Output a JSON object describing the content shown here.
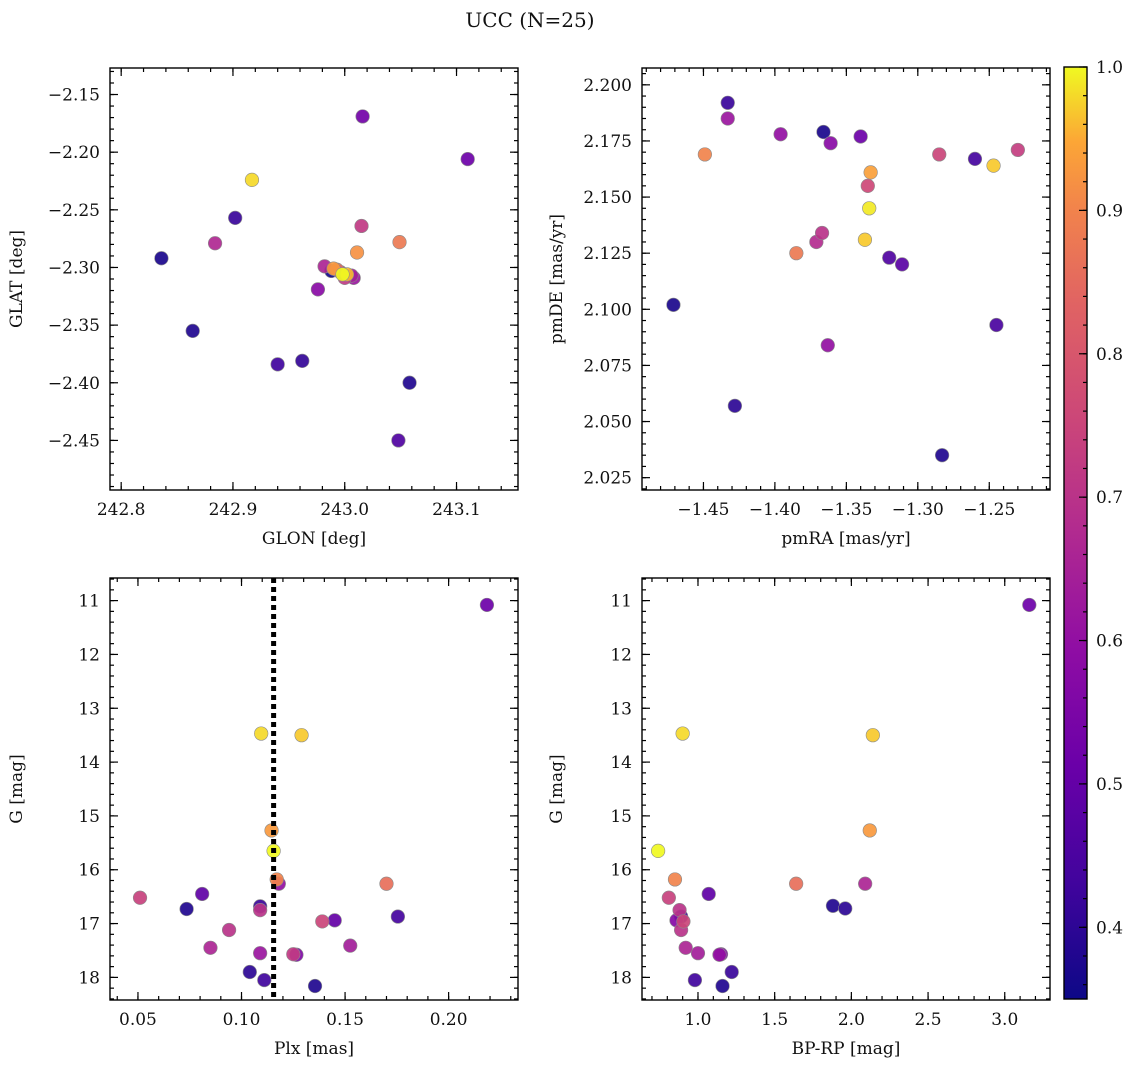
{
  "title": "UCC (N=25)",
  "colorbar": {
    "min": 0.35,
    "max": 1.0,
    "ticks": [
      0.4,
      0.5,
      0.6,
      0.7,
      0.8,
      0.9,
      1.0
    ],
    "tick_labels": [
      "0.4",
      "0.5",
      "0.6",
      "0.7",
      "0.8",
      "0.9",
      "1.0"
    ],
    "colormap": "plasma"
  },
  "chart_data": [
    {
      "type": "scatter",
      "xlabel": "GLON [deg]",
      "ylabel": "GLAT [deg]",
      "xlim": [
        242.79,
        243.155
      ],
      "ylim": [
        -2.493,
        -2.127
      ],
      "xticks": [
        242.8,
        242.9,
        243.0,
        243.1
      ],
      "xtick_labels": [
        "242.8",
        "242.9",
        "243.0",
        "243.1"
      ],
      "yticks": [
        -2.15,
        -2.2,
        -2.25,
        -2.3,
        -2.35,
        -2.4,
        -2.45
      ],
      "ytick_labels": [
        "−2.15",
        "−2.20",
        "−2.25",
        "−2.30",
        "−2.35",
        "−2.40",
        "−2.45"
      ],
      "points": [
        {
          "x": 242.836,
          "y": -2.292,
          "c": 0.37
        },
        {
          "x": 242.864,
          "y": -2.355,
          "c": 0.38
        },
        {
          "x": 242.884,
          "y": -2.279,
          "c": 0.67
        },
        {
          "x": 242.902,
          "y": -2.257,
          "c": 0.42
        },
        {
          "x": 242.917,
          "y": -2.224,
          "c": 0.98
        },
        {
          "x": 242.94,
          "y": -2.384,
          "c": 0.43
        },
        {
          "x": 242.962,
          "y": -2.381,
          "c": 0.41
        },
        {
          "x": 242.976,
          "y": -2.319,
          "c": 0.58
        },
        {
          "x": 242.982,
          "y": -2.299,
          "c": 0.66
        },
        {
          "x": 242.988,
          "y": -2.303,
          "c": 0.36
        },
        {
          "x": 242.99,
          "y": -2.301,
          "c": 0.93
        },
        {
          "x": 242.993,
          "y": -2.302,
          "c": 0.85
        },
        {
          "x": 242.996,
          "y": -2.304,
          "c": 0.69
        },
        {
          "x": 242.998,
          "y": -2.306,
          "c": 1.0
        },
        {
          "x": 243.0,
          "y": -2.309,
          "c": 0.72
        },
        {
          "x": 243.002,
          "y": -2.306,
          "c": 0.96
        },
        {
          "x": 243.006,
          "y": -2.307,
          "c": 0.64
        },
        {
          "x": 243.008,
          "y": -2.309,
          "c": 0.62
        },
        {
          "x": 243.011,
          "y": -2.287,
          "c": 0.92
        },
        {
          "x": 243.015,
          "y": -2.264,
          "c": 0.72
        },
        {
          "x": 243.016,
          "y": -2.169,
          "c": 0.53
        },
        {
          "x": 243.049,
          "y": -2.278,
          "c": 0.88
        },
        {
          "x": 243.048,
          "y": -2.45,
          "c": 0.46
        },
        {
          "x": 243.058,
          "y": -2.4,
          "c": 0.38
        },
        {
          "x": 243.11,
          "y": -2.206,
          "c": 0.52
        }
      ]
    },
    {
      "type": "scatter",
      "xlabel": "pmRA [mas/yr]",
      "ylabel": "pmDE [mas/yr]",
      "xlim": [
        -1.493,
        -1.2075
      ],
      "ylim": [
        2.0195,
        2.2075
      ],
      "xticks": [
        -1.45,
        -1.4,
        -1.35,
        -1.3,
        -1.25
      ],
      "xtick_labels": [
        "−1.45",
        "−1.40",
        "−1.35",
        "−1.30",
        "−1.25"
      ],
      "yticks": [
        2.2,
        2.175,
        2.15,
        2.125,
        2.1,
        2.075,
        2.05,
        2.025
      ],
      "ytick_labels": [
        "2.200",
        "2.175",
        "2.150",
        "2.125",
        "2.100",
        "2.075",
        "2.050",
        "2.025"
      ],
      "points": [
        {
          "x": -1.471,
          "y": 2.102,
          "c": 0.37
        },
        {
          "x": -1.449,
          "y": 2.169,
          "c": 0.9
        },
        {
          "x": -1.433,
          "y": 2.192,
          "c": 0.42
        },
        {
          "x": -1.433,
          "y": 2.185,
          "c": 0.62
        },
        {
          "x": -1.428,
          "y": 2.057,
          "c": 0.4
        },
        {
          "x": -1.396,
          "y": 2.178,
          "c": 0.6
        },
        {
          "x": -1.385,
          "y": 2.125,
          "c": 0.88
        },
        {
          "x": -1.371,
          "y": 2.13,
          "c": 0.68
        },
        {
          "x": -1.367,
          "y": 2.134,
          "c": 0.7
        },
        {
          "x": -1.366,
          "y": 2.179,
          "c": 0.37
        },
        {
          "x": -1.363,
          "y": 2.084,
          "c": 0.6
        },
        {
          "x": -1.361,
          "y": 2.174,
          "c": 0.58
        },
        {
          "x": -1.34,
          "y": 2.177,
          "c": 0.52
        },
        {
          "x": -1.337,
          "y": 2.131,
          "c": 0.97
        },
        {
          "x": -1.335,
          "y": 2.155,
          "c": 0.76
        },
        {
          "x": -1.334,
          "y": 2.145,
          "c": 0.99
        },
        {
          "x": -1.333,
          "y": 2.161,
          "c": 0.94
        },
        {
          "x": -1.32,
          "y": 2.123,
          "c": 0.46
        },
        {
          "x": -1.311,
          "y": 2.12,
          "c": 0.48
        },
        {
          "x": -1.285,
          "y": 2.169,
          "c": 0.75
        },
        {
          "x": -1.283,
          "y": 2.035,
          "c": 0.38
        },
        {
          "x": -1.26,
          "y": 2.167,
          "c": 0.44
        },
        {
          "x": -1.247,
          "y": 2.164,
          "c": 0.97
        },
        {
          "x": -1.245,
          "y": 2.093,
          "c": 0.45
        },
        {
          "x": -1.23,
          "y": 2.171,
          "c": 0.73
        }
      ]
    },
    {
      "type": "scatter",
      "xlabel": "Plx [mas]",
      "ylabel": "G [mag]",
      "xlim": [
        0.0365,
        0.2335
      ],
      "ylim": [
        18.42,
        10.58
      ],
      "xticks": [
        0.05,
        0.1,
        0.15,
        0.2
      ],
      "xtick_labels": [
        "0.05",
        "0.10",
        "0.15",
        "0.20"
      ],
      "yticks": [
        11,
        12,
        13,
        14,
        15,
        16,
        17,
        18
      ],
      "ytick_labels": [
        "11",
        "12",
        "13",
        "14",
        "15",
        "16",
        "17",
        "18"
      ],
      "vline": 0.1155,
      "points": [
        {
          "x": 0.051,
          "y": 16.52,
          "c": 0.74
        },
        {
          "x": 0.0735,
          "y": 16.73,
          "c": 0.38
        },
        {
          "x": 0.081,
          "y": 16.45,
          "c": 0.49
        },
        {
          "x": 0.085,
          "y": 17.45,
          "c": 0.66
        },
        {
          "x": 0.094,
          "y": 17.12,
          "c": 0.7
        },
        {
          "x": 0.104,
          "y": 17.9,
          "c": 0.4
        },
        {
          "x": 0.109,
          "y": 16.68,
          "c": 0.42
        },
        {
          "x": 0.109,
          "y": 16.75,
          "c": 0.7
        },
        {
          "x": 0.109,
          "y": 17.55,
          "c": 0.62
        },
        {
          "x": 0.1095,
          "y": 13.47,
          "c": 0.98
        },
        {
          "x": 0.111,
          "y": 18.05,
          "c": 0.43
        },
        {
          "x": 0.1145,
          "y": 15.27,
          "c": 0.93
        },
        {
          "x": 0.1155,
          "y": 15.65,
          "c": 1.0
        },
        {
          "x": 0.117,
          "y": 16.18,
          "c": 0.9
        },
        {
          "x": 0.118,
          "y": 16.26,
          "c": 0.6
        },
        {
          "x": 0.125,
          "y": 17.57,
          "c": 0.72
        },
        {
          "x": 0.1265,
          "y": 17.58,
          "c": 0.56
        },
        {
          "x": 0.129,
          "y": 13.5,
          "c": 0.97
        },
        {
          "x": 0.1355,
          "y": 18.16,
          "c": 0.38
        },
        {
          "x": 0.139,
          "y": 16.96,
          "c": 0.75
        },
        {
          "x": 0.145,
          "y": 16.94,
          "c": 0.5
        },
        {
          "x": 0.1525,
          "y": 17.41,
          "c": 0.64
        },
        {
          "x": 0.17,
          "y": 16.26,
          "c": 0.86
        },
        {
          "x": 0.1755,
          "y": 16.87,
          "c": 0.44
        },
        {
          "x": 0.2185,
          "y": 11.08,
          "c": 0.52
        }
      ]
    },
    {
      "type": "scatter",
      "xlabel": "BP-RP [mag]",
      "ylabel": "G [mag]",
      "xlim": [
        0.635,
        3.295
      ],
      "ylim": [
        18.42,
        10.58
      ],
      "xticks": [
        1.0,
        1.5,
        2.0,
        2.5,
        3.0
      ],
      "xtick_labels": [
        "1.0",
        "1.5",
        "2.0",
        "2.5",
        "3.0"
      ],
      "yticks": [
        11,
        12,
        13,
        14,
        15,
        16,
        17,
        18
      ],
      "ytick_labels": [
        "11",
        "12",
        "13",
        "14",
        "15",
        "16",
        "17",
        "18"
      ],
      "points": [
        {
          "x": 0.74,
          "y": 15.65,
          "c": 1.0
        },
        {
          "x": 0.81,
          "y": 16.52,
          "c": 0.74
        },
        {
          "x": 0.85,
          "y": 16.18,
          "c": 0.9
        },
        {
          "x": 0.86,
          "y": 16.94,
          "c": 0.57
        },
        {
          "x": 0.88,
          "y": 16.75,
          "c": 0.7
        },
        {
          "x": 0.89,
          "y": 16.87,
          "c": 0.44
        },
        {
          "x": 0.89,
          "y": 17.12,
          "c": 0.7
        },
        {
          "x": 0.9,
          "y": 13.47,
          "c": 0.98
        },
        {
          "x": 0.905,
          "y": 16.96,
          "c": 0.75
        },
        {
          "x": 0.92,
          "y": 17.45,
          "c": 0.66
        },
        {
          "x": 0.98,
          "y": 18.05,
          "c": 0.43
        },
        {
          "x": 1.0,
          "y": 17.55,
          "c": 0.64
        },
        {
          "x": 1.07,
          "y": 16.45,
          "c": 0.49
        },
        {
          "x": 1.14,
          "y": 17.58,
          "c": 0.6
        },
        {
          "x": 1.15,
          "y": 17.57,
          "c": 0.56
        },
        {
          "x": 1.16,
          "y": 18.16,
          "c": 0.38
        },
        {
          "x": 1.22,
          "y": 17.9,
          "c": 0.42
        },
        {
          "x": 1.64,
          "y": 16.26,
          "c": 0.86
        },
        {
          "x": 1.88,
          "y": 16.67,
          "c": 0.38
        },
        {
          "x": 1.96,
          "y": 16.72,
          "c": 0.4
        },
        {
          "x": 2.09,
          "y": 16.26,
          "c": 0.66
        },
        {
          "x": 2.12,
          "y": 15.27,
          "c": 0.93
        },
        {
          "x": 2.14,
          "y": 13.5,
          "c": 0.97
        },
        {
          "x": 3.16,
          "y": 11.08,
          "c": 0.52
        }
      ]
    }
  ]
}
